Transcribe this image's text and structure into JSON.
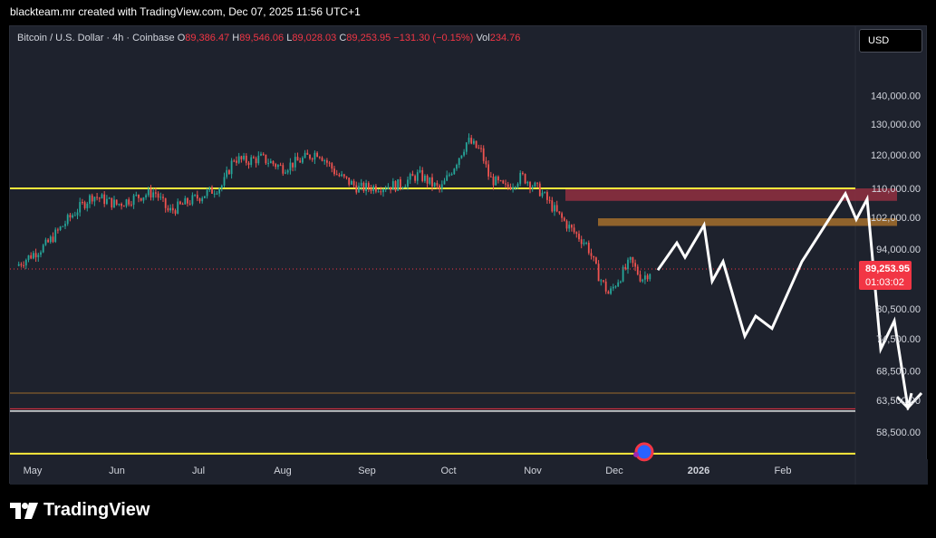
{
  "header": {
    "text": "blackteam.mr created with TradingView.com, Dec 07, 2025 11:56 UTC+1"
  },
  "legend": {
    "symbol": "Bitcoin / U.S. Dollar · 4h · Coinbase",
    "o_label": "O",
    "o_value": "89,386.47",
    "h_label": "H",
    "h_value": "89,546.06",
    "l_label": "L",
    "l_value": "89,028.03",
    "c_label": "C",
    "c_value": "89,253.95",
    "change": "−131.30 (−0.15%)",
    "vol_label": "Vol",
    "vol_value": "234.76"
  },
  "currency_button": "USD",
  "price_label": {
    "price": "89,253.95",
    "countdown": "01:03:02"
  },
  "brand": {
    "name": "TradingView"
  },
  "colors": {
    "background": "#1e222d",
    "up": "#26a69a",
    "down": "#ef5350",
    "yellow_line": "#ffeb3b",
    "red_zone": "#8b2f3f",
    "brown_zone": "#9c6a2c",
    "price_label_bg": "#f23645",
    "projection": "#ffffff"
  },
  "chart_data": {
    "type": "line",
    "series_type": "candlestick",
    "timeframe": "4h",
    "scale": "log",
    "ylim": [
      54500,
      160000
    ],
    "y_ticks": [
      "140,000.00",
      "130,000.00",
      "120,000.00",
      "110,000.00",
      "102,000.00",
      "94,000.00",
      "80,500.00",
      "74,500.00",
      "68,500.00",
      "63,500.00",
      "58,500.00"
    ],
    "y_tick_values": [
      140000,
      130000,
      120000,
      110000,
      102000,
      94000,
      80500,
      74500,
      68500,
      63500,
      58500
    ],
    "x_ticks": [
      "May",
      "Jun",
      "Jul",
      "Aug",
      "Sep",
      "Oct",
      "Nov",
      "Dec",
      "2026",
      "Feb"
    ],
    "x_tick_days": [
      0,
      31,
      61,
      92,
      123,
      153,
      184,
      214,
      245,
      276
    ],
    "price_path": [
      {
        "day": -6,
        "price": 90000
      },
      {
        "day": 5,
        "price": 95000
      },
      {
        "day": 15,
        "price": 103000
      },
      {
        "day": 22,
        "price": 108000
      },
      {
        "day": 31,
        "price": 105500
      },
      {
        "day": 38,
        "price": 107500
      },
      {
        "day": 45,
        "price": 109000
      },
      {
        "day": 50,
        "price": 103500
      },
      {
        "day": 58,
        "price": 106500
      },
      {
        "day": 65,
        "price": 109000
      },
      {
        "day": 70,
        "price": 111000
      },
      {
        "day": 74,
        "price": 119000
      },
      {
        "day": 78,
        "price": 118000
      },
      {
        "day": 84,
        "price": 119000
      },
      {
        "day": 92,
        "price": 116000
      },
      {
        "day": 99,
        "price": 118500
      },
      {
        "day": 105,
        "price": 121000
      },
      {
        "day": 112,
        "price": 114000
      },
      {
        "day": 120,
        "price": 110000
      },
      {
        "day": 127,
        "price": 110500
      },
      {
        "day": 135,
        "price": 111000
      },
      {
        "day": 142,
        "price": 114000
      },
      {
        "day": 150,
        "price": 109500
      },
      {
        "day": 155,
        "price": 116500
      },
      {
        "day": 160,
        "price": 124500
      },
      {
        "day": 165,
        "price": 121000
      },
      {
        "day": 168,
        "price": 113000
      },
      {
        "day": 174,
        "price": 110000
      },
      {
        "day": 180,
        "price": 113500
      },
      {
        "day": 187,
        "price": 109000
      },
      {
        "day": 193,
        "price": 103000
      },
      {
        "day": 198,
        "price": 99000
      },
      {
        "day": 204,
        "price": 95000
      },
      {
        "day": 208,
        "price": 88000
      },
      {
        "day": 212,
        "price": 83500
      },
      {
        "day": 215,
        "price": 86500
      },
      {
        "day": 220,
        "price": 91000
      },
      {
        "day": 224,
        "price": 87000
      },
      {
        "day": 228,
        "price": 89254
      }
    ],
    "horizontal_levels": [
      {
        "price": 110000,
        "color": "#ffeb3b",
        "style": "line"
      },
      {
        "price": 64700,
        "color": "#9c6a2c",
        "style": "thin"
      },
      {
        "price": 61900,
        "color": "#e6e6e6",
        "style": "double"
      },
      {
        "price": 55300,
        "color": "#ffeb3b",
        "style": "line"
      }
    ],
    "zones": [
      {
        "from_day": 196,
        "to_day": 318,
        "low": 106500,
        "high": 110000,
        "color": "#8b2f3f"
      },
      {
        "from_day": 208,
        "to_day": 318,
        "low": 99800,
        "high": 101800,
        "color": "#9c6a2c"
      }
    ],
    "current_price": 89253.95,
    "projection": [
      {
        "day": 230,
        "price": 89000
      },
      {
        "day": 237,
        "price": 95500
      },
      {
        "day": 240,
        "price": 92000
      },
      {
        "day": 247,
        "price": 100000
      },
      {
        "day": 250,
        "price": 86500
      },
      {
        "day": 254,
        "price": 91000
      },
      {
        "day": 262,
        "price": 75000
      },
      {
        "day": 266,
        "price": 79000
      },
      {
        "day": 272,
        "price": 76500
      },
      {
        "day": 283,
        "price": 91000
      },
      {
        "day": 299,
        "price": 108500
      },
      {
        "day": 303,
        "price": 101500
      },
      {
        "day": 307,
        "price": 107000
      },
      {
        "day": 312,
        "price": 72500
      },
      {
        "day": 317,
        "price": 78000
      },
      {
        "day": 322,
        "price": 62300
      },
      {
        "day": 327,
        "price": 64700
      }
    ]
  }
}
